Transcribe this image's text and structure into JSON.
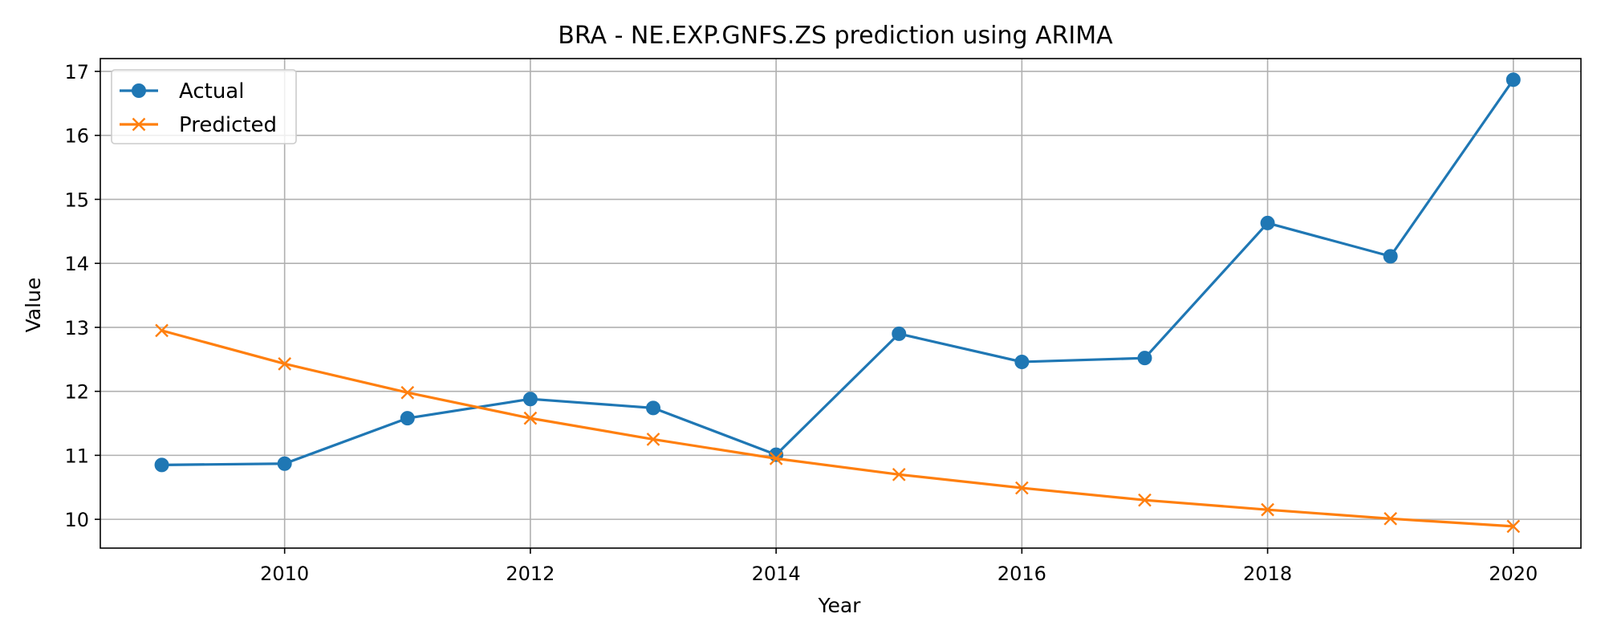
{
  "chart_data": {
    "type": "line",
    "title": "BRA - NE.EXP.GNFS.ZS prediction using ARIMA",
    "xlabel": "Year",
    "ylabel": "Value",
    "xlim": [
      2008.5,
      2020.55
    ],
    "ylim": [
      9.55,
      17.2
    ],
    "x_ticks": [
      2010,
      2012,
      2014,
      2016,
      2018,
      2020
    ],
    "y_ticks": [
      10,
      11,
      12,
      13,
      14,
      15,
      16,
      17
    ],
    "grid": true,
    "legend_position": "upper-left",
    "x": [
      2009,
      2010,
      2011,
      2012,
      2013,
      2014,
      2015,
      2016,
      2017,
      2018,
      2019,
      2020
    ],
    "series": [
      {
        "name": "Actual",
        "marker": "circle",
        "color": "#1f77b4",
        "values": [
          10.85,
          10.87,
          11.58,
          11.88,
          11.74,
          11.01,
          12.9,
          12.46,
          12.52,
          14.63,
          14.11,
          16.87
        ]
      },
      {
        "name": "Predicted",
        "marker": "x",
        "color": "#ff7f0e",
        "values": [
          12.95,
          12.43,
          11.98,
          11.58,
          11.25,
          10.95,
          10.7,
          10.49,
          10.3,
          10.15,
          10.01,
          9.89
        ]
      }
    ]
  }
}
